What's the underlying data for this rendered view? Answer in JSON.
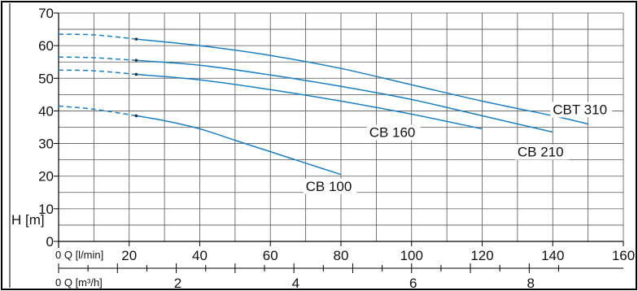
{
  "chart_data": {
    "type": "line",
    "title": "",
    "ylabel": "H [m]",
    "xlabel_lmin": "0 Q [l/min]",
    "xlabel_m3h": "0 Q [m³/h]",
    "xlim": [
      0,
      160
    ],
    "ylim": [
      0,
      70
    ],
    "grid": true,
    "y_ticks": [
      0,
      10,
      20,
      30,
      40,
      50,
      60,
      70
    ],
    "x_ticks_lmin": [
      20,
      40,
      60,
      80,
      100,
      120,
      140,
      160
    ],
    "x_ticks_m3h": [
      2,
      4,
      6,
      8
    ],
    "x_ticks_m3h_pos_lmin": [
      33.3,
      66.7,
      100,
      133.3
    ],
    "series": [
      {
        "name": "CBT 310",
        "dashed": [
          [
            0,
            63.5
          ],
          [
            10,
            63.3
          ],
          [
            22,
            62
          ]
        ],
        "solid": [
          [
            22,
            62
          ],
          [
            40,
            60
          ],
          [
            60,
            57
          ],
          [
            80,
            53
          ],
          [
            100,
            48
          ],
          [
            120,
            43
          ],
          [
            140,
            38.5
          ],
          [
            150,
            36
          ]
        ]
      },
      {
        "name": "CB 210",
        "dashed": [
          [
            0,
            56.5
          ],
          [
            10,
            56.3
          ],
          [
            22,
            55.5
          ]
        ],
        "solid": [
          [
            22,
            55.5
          ],
          [
            40,
            54
          ],
          [
            60,
            51
          ],
          [
            80,
            47.5
          ],
          [
            100,
            43.5
          ],
          [
            120,
            38.5
          ],
          [
            140,
            33.5
          ]
        ]
      },
      {
        "name": "CB 160",
        "dashed": [
          [
            0,
            52.5
          ],
          [
            10,
            52.3
          ],
          [
            22,
            51.2
          ]
        ],
        "solid": [
          [
            22,
            51.2
          ],
          [
            40,
            49.5
          ],
          [
            60,
            46.5
          ],
          [
            80,
            43
          ],
          [
            100,
            39
          ],
          [
            120,
            34.5
          ]
        ]
      },
      {
        "name": "CB 100",
        "dashed": [
          [
            0,
            41.5
          ],
          [
            10,
            40.5
          ],
          [
            22,
            38.5
          ]
        ],
        "solid": [
          [
            22,
            38.5
          ],
          [
            30,
            37
          ],
          [
            40,
            34.5
          ],
          [
            50,
            31
          ],
          [
            60,
            27.5
          ],
          [
            70,
            24
          ],
          [
            80,
            20.5
          ]
        ]
      }
    ],
    "labels": [
      {
        "text": "CBT 310",
        "x": 140,
        "y": 39
      },
      {
        "text": "CB 210",
        "x": 130,
        "y": 26
      },
      {
        "text": "CB 160",
        "x": 88,
        "y": 32
      },
      {
        "text": "CB 100",
        "x": 70,
        "y": 15.5
      }
    ],
    "color": "#1a7fc4"
  }
}
